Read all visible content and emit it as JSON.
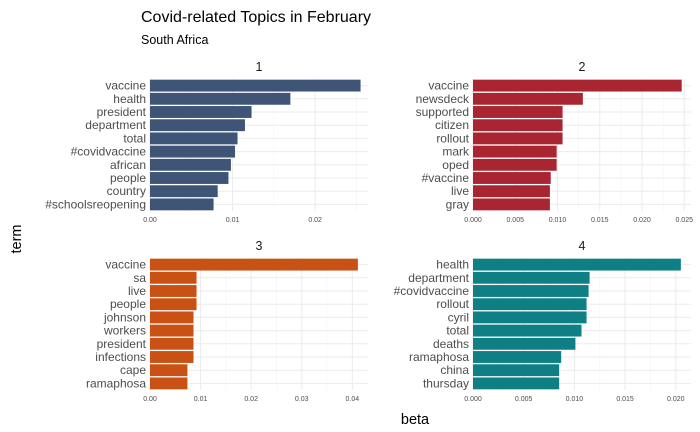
{
  "title": "Covid-related Topics in February",
  "subtitle": "South Africa",
  "xlabel": "beta",
  "ylabel": "term",
  "chart_data": [
    {
      "type": "bar",
      "orientation": "horizontal",
      "panel": "1",
      "color": "#3f5577",
      "categories": [
        "vaccine",
        "health",
        "president",
        "department",
        "total",
        "#covidvaccine",
        "african",
        "people",
        "country",
        "#schoolsreopening"
      ],
      "values": [
        0.0255,
        0.017,
        0.0123,
        0.0115,
        0.0106,
        0.0103,
        0.0098,
        0.0095,
        0.0082,
        0.0077
      ],
      "xticks": [
        0.0,
        0.01,
        0.02
      ],
      "xtick_labels": [
        "0.00",
        "0.01",
        "0.02"
      ],
      "xlim": [
        0,
        0.0264
      ]
    },
    {
      "type": "bar",
      "orientation": "horizontal",
      "panel": "2",
      "color": "#a82531",
      "categories": [
        "vaccine",
        "newsdeck",
        "supported",
        "citizen",
        "rollout",
        "mark",
        "oped",
        "#vaccine",
        "live",
        "gray"
      ],
      "values": [
        0.0247,
        0.013,
        0.0106,
        0.0106,
        0.0106,
        0.0099,
        0.0099,
        0.0092,
        0.0091,
        0.0091
      ],
      "xticks": [
        0.0,
        0.005,
        0.01,
        0.015,
        0.02,
        0.025
      ],
      "xtick_labels": [
        "0.000",
        "0.005",
        "0.010",
        "0.015",
        "0.020",
        "0.025"
      ],
      "xlim": [
        0,
        0.0258
      ]
    },
    {
      "type": "bar",
      "orientation": "horizontal",
      "panel": "3",
      "color": "#c95114",
      "categories": [
        "vaccine",
        "sa",
        "live",
        "people",
        "johnson",
        "workers",
        "president",
        "infections",
        "cape",
        "ramaphosa"
      ],
      "values": [
        0.0411,
        0.0092,
        0.0092,
        0.0092,
        0.0086,
        0.0086,
        0.0086,
        0.0086,
        0.0074,
        0.0074
      ],
      "xticks": [
        0.0,
        0.01,
        0.02,
        0.03,
        0.04
      ],
      "xtick_labels": [
        "0.00",
        "0.01",
        "0.02",
        "0.03",
        "0.04"
      ],
      "xlim": [
        0,
        0.0431
      ]
    },
    {
      "type": "bar",
      "orientation": "horizontal",
      "panel": "4",
      "color": "#0e8085",
      "categories": [
        "health",
        "department",
        "#covidvaccine",
        "rollout",
        "cyril",
        "total",
        "deaths",
        "ramaphosa",
        "china",
        "thursday"
      ],
      "values": [
        0.0205,
        0.0115,
        0.0114,
        0.0112,
        0.0112,
        0.0107,
        0.0101,
        0.0087,
        0.0085,
        0.0085
      ],
      "xticks": [
        0.0,
        0.005,
        0.01,
        0.015,
        0.02
      ],
      "xtick_labels": [
        "0.000",
        "0.005",
        "0.010",
        "0.015",
        "0.020"
      ],
      "xlim": [
        0,
        0.0215
      ]
    }
  ]
}
